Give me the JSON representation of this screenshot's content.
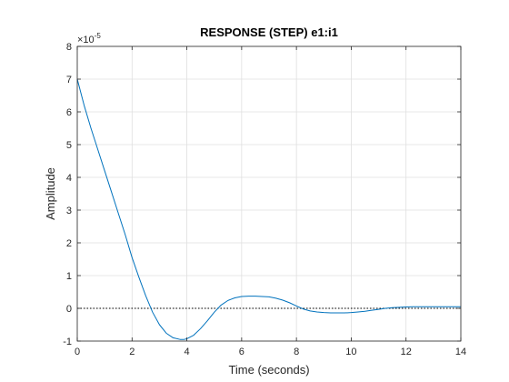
{
  "chart_data": {
    "type": "line",
    "title": "RESPONSE (STEP) e1:i1",
    "xlabel": "Time (seconds)",
    "ylabel": "Amplitude",
    "xlim": [
      0,
      14
    ],
    "ylim": [
      -1,
      8
    ],
    "y_multiplier_base": "×10",
    "y_multiplier_exponent": "-5",
    "x_ticks": [
      0,
      2,
      4,
      6,
      8,
      10,
      12,
      14
    ],
    "x_tick_labels": [
      "0",
      "2",
      "4",
      "6",
      "8",
      "10",
      "12",
      "14"
    ],
    "y_ticks": [
      -1,
      0,
      1,
      2,
      3,
      4,
      5,
      6,
      7,
      8
    ],
    "y_tick_labels": [
      "-1",
      "0",
      "1",
      "2",
      "3",
      "4",
      "5",
      "6",
      "7",
      "8"
    ],
    "grid": true,
    "reference_line": {
      "y": 0,
      "style": "dotted",
      "color": "#000000"
    },
    "series": [
      {
        "color": "#0072bd",
        "x": [
          0,
          0.25,
          0.5,
          0.75,
          1.0,
          1.25,
          1.5,
          1.75,
          2.0,
          2.25,
          2.5,
          2.75,
          3.0,
          3.25,
          3.5,
          3.75,
          3.9,
          4.0,
          4.25,
          4.5,
          4.75,
          5.0,
          5.25,
          5.5,
          5.75,
          6.0,
          6.25,
          6.5,
          6.75,
          7.0,
          7.25,
          7.5,
          7.75,
          8.0,
          8.25,
          8.5,
          8.75,
          9.0,
          9.25,
          9.5,
          9.75,
          10.0,
          10.25,
          10.5,
          10.75,
          11.0,
          11.25,
          11.5,
          11.75,
          12.0,
          12.25,
          12.5,
          12.75,
          13.0,
          13.25,
          13.5,
          13.75,
          14.0
        ],
        "y": [
          7.0,
          6.2,
          5.5,
          4.85,
          4.2,
          3.55,
          2.9,
          2.25,
          1.55,
          0.95,
          0.38,
          -0.12,
          -0.5,
          -0.76,
          -0.9,
          -0.95,
          -0.95,
          -0.93,
          -0.82,
          -0.62,
          -0.38,
          -0.12,
          0.1,
          0.24,
          0.32,
          0.36,
          0.37,
          0.37,
          0.36,
          0.35,
          0.31,
          0.25,
          0.17,
          0.07,
          -0.02,
          -0.08,
          -0.11,
          -0.13,
          -0.14,
          -0.14,
          -0.14,
          -0.13,
          -0.11,
          -0.09,
          -0.06,
          -0.03,
          0.0,
          0.02,
          0.03,
          0.04,
          0.05,
          0.05,
          0.05,
          0.05,
          0.05,
          0.05,
          0.05,
          0.05
        ]
      }
    ]
  }
}
